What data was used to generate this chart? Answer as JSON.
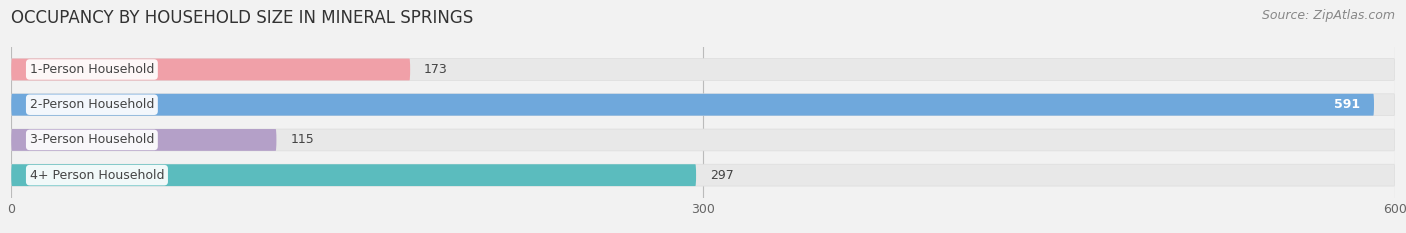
{
  "title": "OCCUPANCY BY HOUSEHOLD SIZE IN MINERAL SPRINGS",
  "source": "Source: ZipAtlas.com",
  "categories": [
    "1-Person Household",
    "2-Person Household",
    "3-Person Household",
    "4+ Person Household"
  ],
  "values": [
    173,
    591,
    115,
    297
  ],
  "bar_colors": [
    "#f0a0a8",
    "#6fa8dc",
    "#b4a0c8",
    "#5bbcbe"
  ],
  "xlim": [
    0,
    600
  ],
  "xticks": [
    0,
    300,
    600
  ],
  "background_color": "#f2f2f2",
  "bar_bg_color": "#e8e8e8",
  "label_bg_color": "#ffffff",
  "title_fontsize": 12,
  "source_fontsize": 9,
  "label_fontsize": 9,
  "value_fontsize": 9
}
